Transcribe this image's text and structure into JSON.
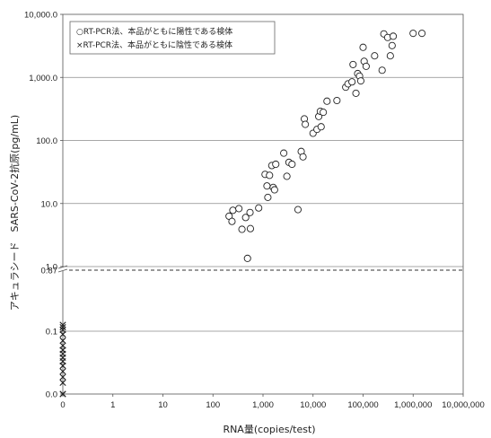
{
  "chart_data": {
    "type": "scatter",
    "title": "",
    "xlabel": "RNA量(copies/test)",
    "ylabel": "アキュラシード　SARS-CoV-2抗原(pg/mL)",
    "x_scale": "log",
    "y_scale": "log",
    "xlim": [
      0,
      10000000
    ],
    "ylim": [
      0,
      10000
    ],
    "cutoff": {
      "value": 0.87,
      "label": "0.87",
      "style": "dashed"
    },
    "y_axis_break_below": 1.0,
    "x_ticks": [
      "0",
      "1",
      "10",
      "100",
      "1,000",
      "10,000",
      "100,000",
      "1,000,000",
      "10,000,000"
    ],
    "y_ticks": [
      "0.0",
      "0.1",
      "0.87",
      "1.0",
      "10.0",
      "100.0",
      "1,000.0",
      "10,000.0"
    ],
    "grid": {
      "y_major": true,
      "x_major": false
    },
    "legend": {
      "placement": "top-left",
      "entries": [
        {
          "marker": "○",
          "label": "RT-PCR法、本品がともに陽性である検体"
        },
        {
          "marker": "×",
          "label": "RT-PCR法、本品がともに陰性である検体"
        }
      ]
    },
    "series": [
      {
        "marker": "circle",
        "points": [
          [
            210,
            6.3
          ],
          [
            240,
            5.2
          ],
          [
            250,
            7.8
          ],
          [
            330,
            8.3
          ],
          [
            380,
            3.9
          ],
          [
            450,
            6.0
          ],
          [
            490,
            1.35
          ],
          [
            560,
            4.0
          ],
          [
            550,
            7.2
          ],
          [
            820,
            8.5
          ],
          [
            1100,
            29
          ],
          [
            1200,
            19
          ],
          [
            1250,
            12.5
          ],
          [
            1350,
            28
          ],
          [
            1500,
            40
          ],
          [
            1600,
            18
          ],
          [
            1700,
            16.5
          ],
          [
            1800,
            42
          ],
          [
            2600,
            63
          ],
          [
            3000,
            27
          ],
          [
            3300,
            45
          ],
          [
            3800,
            42
          ],
          [
            5000,
            8.0
          ],
          [
            5800,
            67
          ],
          [
            6300,
            55
          ],
          [
            6700,
            220
          ],
          [
            7000,
            180
          ],
          [
            10000,
            130
          ],
          [
            12000,
            150
          ],
          [
            13000,
            240
          ],
          [
            14000,
            290
          ],
          [
            14500,
            165
          ],
          [
            16000,
            280
          ],
          [
            19000,
            420
          ],
          [
            30000,
            430
          ],
          [
            45000,
            700
          ],
          [
            50000,
            790
          ],
          [
            60000,
            850
          ],
          [
            63000,
            1600
          ],
          [
            72000,
            560
          ],
          [
            78000,
            1150
          ],
          [
            85000,
            1050
          ],
          [
            90000,
            880
          ],
          [
            100000,
            3000
          ],
          [
            105000,
            1800
          ],
          [
            115000,
            1500
          ],
          [
            170000,
            2200
          ],
          [
            240000,
            1300
          ],
          [
            260000,
            4900
          ],
          [
            310000,
            4300
          ],
          [
            350000,
            2200
          ],
          [
            380000,
            3200
          ],
          [
            400000,
            4500
          ],
          [
            1000000,
            5000
          ],
          [
            1500000,
            5000
          ]
        ]
      },
      {
        "marker": "cross",
        "points": [
          [
            0,
            0
          ],
          [
            0,
            0
          ],
          [
            0,
            0.018
          ],
          [
            0,
            0.027
          ],
          [
            0,
            0.036
          ],
          [
            0,
            0.045
          ],
          [
            0,
            0.052
          ],
          [
            0,
            0.058
          ],
          [
            0,
            0.064
          ],
          [
            0,
            0.07
          ],
          [
            0,
            0.077
          ],
          [
            0,
            0.085
          ],
          [
            0,
            0.095
          ],
          [
            0,
            0.105
          ],
          [
            0,
            0.115
          ],
          [
            0,
            0.125
          ]
        ]
      }
    ]
  }
}
